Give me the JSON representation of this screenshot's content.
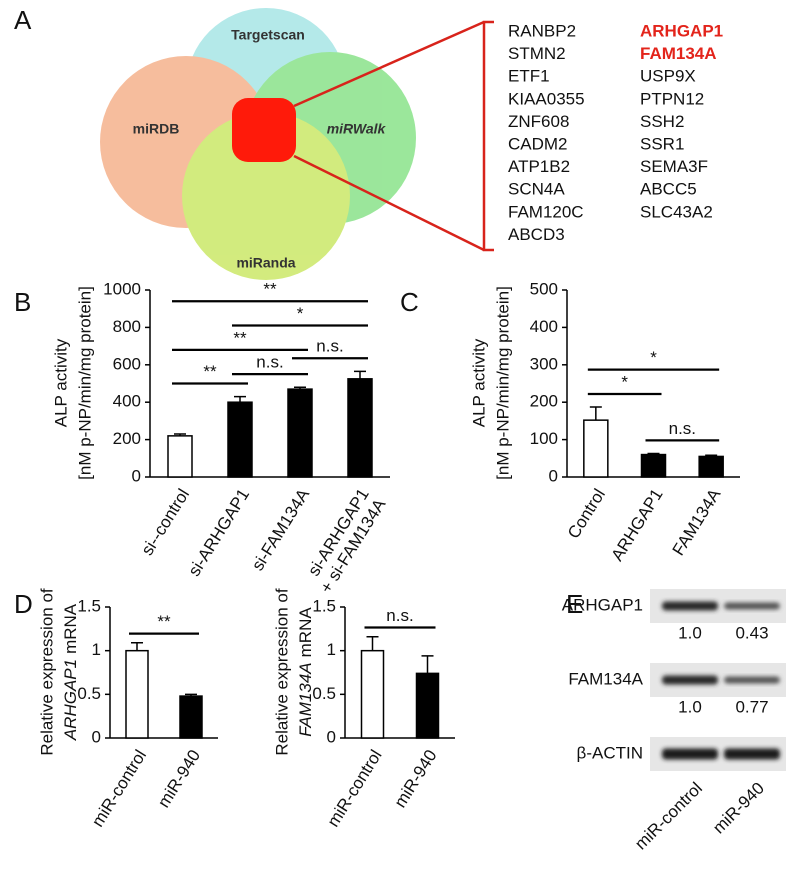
{
  "panel_labels": [
    "A",
    "B",
    "C",
    "D",
    "E"
  ],
  "venn": {
    "sets": [
      "Targetscan",
      "miRDB",
      "miRWalk",
      "miRanda"
    ]
  },
  "gene_list": {
    "columns": [
      {
        "genes": [
          "RANBP2",
          "STMN2",
          "ETF1",
          "KIAA0355",
          "ZNF608",
          "CADM2",
          "ATP1B2",
          "SCN4A",
          "FAM120C",
          "ABCD3"
        ]
      },
      {
        "genes": [
          "ARHGAP1",
          "FAM134A",
          "USP9X",
          "PTPN12",
          "SSH2",
          "SSR1",
          "SEMA3F",
          "ABCC5",
          "SLC43A2"
        ],
        "highlighted_rows": [
          0,
          1
        ],
        "highlight_color": "#e3241b"
      }
    ]
  },
  "chart_data": [
    {
      "type": "bar",
      "ylabel": [
        "ALP  activity",
        "[nM p-NP/min/mg protein]"
      ],
      "categories": [
        "si--control",
        "si-ARHGAP1",
        "si-FAM134A",
        "si-ARHGAP1\n+ si-FAM134A"
      ],
      "values": [
        220,
        400,
        470,
        525
      ],
      "errors": [
        10,
        30,
        10,
        40
      ],
      "colors": [
        "#ffffff",
        "#000000",
        "#000000",
        "#000000"
      ],
      "ylim": [
        0,
        1000
      ],
      "yticks": [
        0,
        200,
        400,
        600,
        800,
        1000
      ],
      "significance": [
        {
          "from": 0,
          "to": 1,
          "label": "**"
        },
        {
          "from": 1,
          "to": 2,
          "label": "n.s."
        },
        {
          "from": 2,
          "to": 3,
          "label": "n.s."
        },
        {
          "from": 0,
          "to": 2,
          "label": "**"
        },
        {
          "from": 1,
          "to": 3,
          "label": "*"
        },
        {
          "from": 0,
          "to": 3,
          "label": "**"
        }
      ]
    },
    {
      "type": "bar",
      "ylabel": [
        "ALP  activity",
        "[nM p-NP/min/mg protein]"
      ],
      "categories": [
        "Control",
        "ARHGAP1",
        "FAM134A"
      ],
      "values": [
        152,
        60,
        55
      ],
      "errors": [
        35,
        3,
        3
      ],
      "colors": [
        "#ffffff",
        "#000000",
        "#000000"
      ],
      "ylim": [
        0,
        500
      ],
      "yticks": [
        0,
        100,
        200,
        300,
        400,
        500
      ],
      "significance": [
        {
          "from": 0,
          "to": 1,
          "label": "*"
        },
        {
          "from": 1,
          "to": 2,
          "label": "n.s."
        },
        {
          "from": 0,
          "to": 2,
          "label": "*"
        }
      ]
    },
    {
      "type": "bar",
      "ylabel": [
        "Relative expression of",
        [
          {
            "text": "ARHGAP1",
            "italic": true
          },
          {
            "text": "mRNA"
          }
        ]
      ],
      "categories": [
        "miR-control",
        "miR-940"
      ],
      "values": [
        1.0,
        0.48
      ],
      "errors": [
        0.09,
        0.02
      ],
      "colors": [
        "#ffffff",
        "#000000"
      ],
      "ylim": [
        0,
        1.5
      ],
      "yticks": [
        0,
        0.5,
        1,
        1.5
      ],
      "significance": [
        {
          "from": 0,
          "to": 1,
          "label": "**"
        }
      ]
    },
    {
      "type": "bar",
      "ylabel": [
        "Relative expression of",
        [
          {
            "text": "FAM134A",
            "italic": true
          },
          {
            "text": "mRNA"
          }
        ]
      ],
      "categories": [
        "miR-control",
        "miR-940"
      ],
      "values": [
        1.0,
        0.74
      ],
      "errors": [
        0.16,
        0.2
      ],
      "colors": [
        "#ffffff",
        "#000000"
      ],
      "ylim": [
        0,
        1.5
      ],
      "yticks": [
        0,
        0.5,
        1,
        1.5
      ],
      "significance": [
        {
          "from": 0,
          "to": 1,
          "label": "n.s."
        }
      ]
    }
  ],
  "blot": {
    "rows": [
      {
        "label": "ARHGAP1",
        "quantification": [
          "1.0",
          "0.43"
        ]
      },
      {
        "label": "FAM134A",
        "quantification": [
          "1.0",
          "0.77"
        ]
      },
      {
        "label": "β-ACTIN"
      }
    ],
    "lanes": [
      "miR-control",
      "miR-940"
    ]
  }
}
